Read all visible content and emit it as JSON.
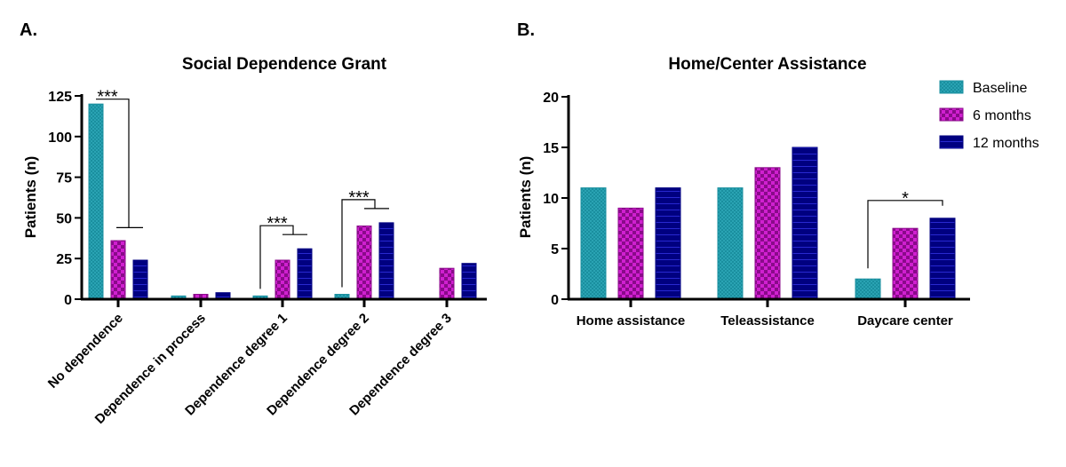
{
  "chart_data": [
    {
      "type": "bar",
      "panel_label": "A.",
      "title": "Social Dependence Grant",
      "ylabel": "Patients (n)",
      "xlabel": "",
      "ylim": [
        0,
        125
      ],
      "yticks": [
        0,
        25,
        50,
        75,
        100,
        125
      ],
      "categories": [
        "No dependence",
        "Dependence in process",
        "Dependence degree 1",
        "Dependence degree 2",
        "Dependence degree 3"
      ],
      "series": [
        {
          "name": "Baseline",
          "values": [
            120,
            2,
            2,
            3,
            0
          ]
        },
        {
          "name": "6 months",
          "values": [
            36,
            3,
            24,
            45,
            19
          ]
        },
        {
          "name": "12 months",
          "values": [
            24,
            4,
            31,
            47,
            22
          ]
        }
      ],
      "annotations": [
        {
          "category": 0,
          "label": "***"
        },
        {
          "category": 2,
          "label": "***"
        },
        {
          "category": 3,
          "label": "***"
        }
      ]
    },
    {
      "type": "bar",
      "panel_label": "B.",
      "title": "Home/Center Assistance",
      "ylabel": "Patients (n)",
      "xlabel": "",
      "ylim": [
        0,
        20
      ],
      "yticks": [
        0,
        5,
        10,
        15,
        20
      ],
      "categories": [
        "Home assistance",
        "Teleassistance",
        "Daycare center"
      ],
      "series": [
        {
          "name": "Baseline",
          "values": [
            11,
            11,
            2
          ]
        },
        {
          "name": "6 months",
          "values": [
            9,
            13,
            7
          ]
        },
        {
          "name": "12 months",
          "values": [
            11,
            15,
            8
          ]
        }
      ],
      "annotations": [
        {
          "category": 2,
          "label": "*"
        }
      ],
      "legend": "top-right"
    }
  ],
  "colors": {
    "Baseline": "#1a8f9f",
    "6 months": "#a010a0",
    "12 months": "#0a0a8a"
  }
}
